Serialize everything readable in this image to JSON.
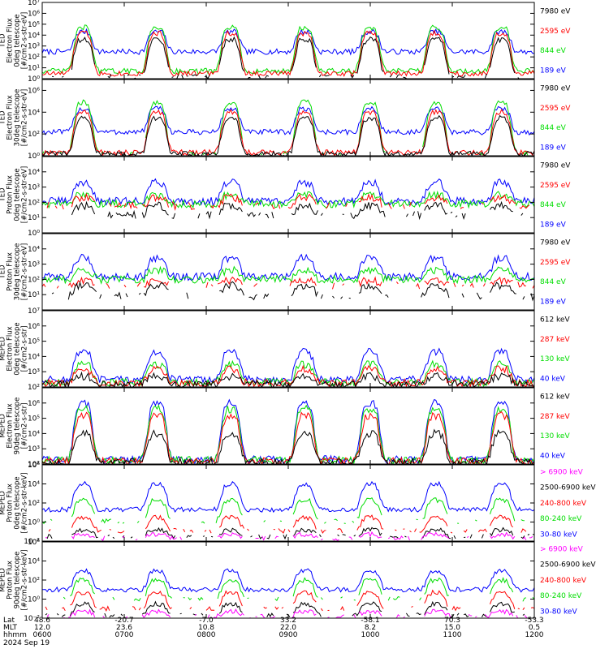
{
  "chart_data": [
    {
      "type": "line",
      "panel": "ted-electron-0deg",
      "ylabel_lines": [
        "TED",
        "Electron Flux",
        "0deg telescope",
        "[#/cm2-s-str-eV]"
      ],
      "ylim": [
        1,
        10000000
      ],
      "yscale": "log",
      "yticks": [
        {
          "label": "10⁷",
          "value": 10000000
        },
        {
          "label": "10⁶",
          "value": 1000000
        },
        {
          "label": "10⁵",
          "value": 100000
        },
        {
          "label": "10⁴",
          "value": 10000
        },
        {
          "label": "10³",
          "value": 1000
        },
        {
          "label": "10²",
          "value": 100
        },
        {
          "label": "10¹",
          "value": 10
        },
        {
          "label": "10⁰",
          "value": 1
        }
      ],
      "legend": [
        "7980 eV",
        "2595 eV",
        "844 eV",
        "189 eV"
      ],
      "series": [
        {
          "name": "189 eV",
          "color": "#0000ff",
          "base": 300,
          "zone": 20000,
          "gap": 0
        },
        {
          "name": "844 eV",
          "color": "#00dd00",
          "base": 5,
          "zone": 50000,
          "gap": 0
        },
        {
          "name": "2595 eV",
          "color": "#ff0000",
          "base": 3,
          "zone": 15000,
          "gap": 0
        },
        {
          "name": "7980 eV",
          "color": "#000000",
          "base": 1.5,
          "zone": 4000,
          "gap": 1
        }
      ]
    },
    {
      "type": "line",
      "panel": "ted-electron-30deg",
      "ylabel_lines": [
        "TED",
        "Electron Flux",
        "30deg telescope",
        "[#/cm2-s-str-eV]"
      ],
      "ylim": [
        1,
        10000000
      ],
      "yscale": "log",
      "yticks": [
        {
          "label": "10⁶",
          "value": 1000000
        },
        {
          "label": "10⁴",
          "value": 10000
        },
        {
          "label": "10²",
          "value": 100
        },
        {
          "label": "10⁰",
          "value": 1
        }
      ],
      "legend": [
        "7980 eV",
        "2595 eV",
        "844 eV",
        "189 eV"
      ],
      "series": [
        {
          "name": "189 eV",
          "color": "#0000ff",
          "base": 150,
          "zone": 20000,
          "gap": 0
        },
        {
          "name": "844 eV",
          "color": "#00dd00",
          "base": 1.5,
          "zone": 80000,
          "gap": 1
        },
        {
          "name": "2595 eV",
          "color": "#ff0000",
          "base": 2,
          "zone": 10000,
          "gap": 0
        },
        {
          "name": "7980 eV",
          "color": "#000000",
          "base": 1.5,
          "zone": 3000,
          "gap": 0
        }
      ]
    },
    {
      "type": "line",
      "panel": "ted-proton-0deg",
      "ylabel_lines": [
        "TED",
        "Proton Flux",
        "0deg telescope",
        "[#/cm2-s-str-eV]"
      ],
      "ylim": [
        1,
        100000
      ],
      "yscale": "log",
      "yticks": [
        {
          "label": "10⁴",
          "value": 10000
        },
        {
          "label": "10³",
          "value": 1000
        },
        {
          "label": "10²",
          "value": 100
        },
        {
          "label": "10¹",
          "value": 10
        },
        {
          "label": "10⁰",
          "value": 1
        }
      ],
      "legend": [
        "7980 eV",
        "2595 eV",
        "844 eV",
        "189 eV"
      ],
      "series": [
        {
          "name": "189 eV",
          "color": "#0000ff",
          "base": 120,
          "zone": 2000,
          "gap": 0
        },
        {
          "name": "844 eV",
          "color": "#00dd00",
          "base": 80,
          "zone": 300,
          "gap": 0
        },
        {
          "name": "2595 eV",
          "color": "#ff0000",
          "base": 60,
          "zone": 200,
          "gap": 1
        },
        {
          "name": "7980 eV",
          "color": "#000000",
          "base": 15,
          "zone": 60,
          "gap": 1
        }
      ]
    },
    {
      "type": "line",
      "panel": "ted-proton-30deg",
      "ylabel_lines": [
        "TED",
        "Proton Flux",
        "30deg telescope",
        "[#/cm2-s-str-eV]"
      ],
      "ylim": [
        1,
        100000
      ],
      "yscale": "log",
      "yticks": [
        {
          "label": "10⁴",
          "value": 10000
        },
        {
          "label": "10³",
          "value": 1000
        },
        {
          "label": "10²",
          "value": 100
        },
        {
          "label": "10¹",
          "value": 10
        }
      ],
      "legend": [
        "7980 eV",
        "2595 eV",
        "844 eV",
        "189 eV"
      ],
      "series": [
        {
          "name": "189 eV",
          "color": "#0000ff",
          "base": 150,
          "zone": 2500,
          "gap": 0
        },
        {
          "name": "844 eV",
          "color": "#00dd00",
          "base": 100,
          "zone": 400,
          "gap": 0
        },
        {
          "name": "2595 eV",
          "color": "#ff0000",
          "base": 40,
          "zone": 80,
          "gap": 1
        },
        {
          "name": "7980 eV",
          "color": "#000000",
          "base": 8,
          "zone": 40,
          "gap": 1
        }
      ]
    },
    {
      "type": "line",
      "panel": "meped-electron-0deg",
      "ylabel_lines": [
        "MEPED",
        "Electron Flux",
        "0deg telescope",
        "[#/cm2-s-str]"
      ],
      "ylim": [
        100,
        10000000
      ],
      "yscale": "log",
      "yticks": [
        {
          "label": "10⁷",
          "value": 10000000
        },
        {
          "label": "10⁶",
          "value": 1000000
        },
        {
          "label": "10⁵",
          "value": 100000
        },
        {
          "label": "10⁴",
          "value": 10000
        },
        {
          "label": "10³",
          "value": 1000
        },
        {
          "label": "10²",
          "value": 100
        }
      ],
      "legend": [
        "612 keV",
        "287 keV",
        "130 keV",
        "40 keV"
      ],
      "series": [
        {
          "name": "40 keV",
          "color": "#0000ff",
          "base": 300,
          "zone": 20000,
          "gap": 0
        },
        {
          "name": "130 keV",
          "color": "#00dd00",
          "base": 200,
          "zone": 3000,
          "gap": 0
        },
        {
          "name": "287 keV",
          "color": "#ff0000",
          "base": 180,
          "zone": 1500,
          "gap": 0
        },
        {
          "name": "612 keV",
          "color": "#000000",
          "base": 150,
          "zone": 500,
          "gap": 0
        }
      ]
    },
    {
      "type": "line",
      "panel": "meped-electron-90deg",
      "ylabel_lines": [
        "MEPED",
        "Electron Flux",
        "90deg telescope",
        "[#/cm2-s-str]"
      ],
      "ylim": [
        100,
        10000000
      ],
      "yscale": "log",
      "yticks": [
        {
          "label": "10⁶",
          "value": 1000000
        },
        {
          "label": "10⁵",
          "value": 100000
        },
        {
          "label": "10⁴",
          "value": 10000
        },
        {
          "label": "10³",
          "value": 1000
        },
        {
          "label": "10²",
          "value": 100
        }
      ],
      "legend": [
        "612 keV",
        "287 keV",
        "130 keV",
        "40 keV"
      ],
      "series": [
        {
          "name": "40 keV",
          "color": "#0000ff",
          "base": 200,
          "zone": 1000000,
          "gap": 0
        },
        {
          "name": "130 keV",
          "color": "#00dd00",
          "base": 180,
          "zone": 400000,
          "gap": 0
        },
        {
          "name": "287 keV",
          "color": "#ff0000",
          "base": 150,
          "zone": 150000,
          "gap": 0
        },
        {
          "name": "612 keV",
          "color": "#000000",
          "base": 130,
          "zone": 10000,
          "gap": 0
        }
      ]
    },
    {
      "type": "line",
      "panel": "meped-proton-0deg",
      "ylabel_lines": [
        "MEPED",
        "Proton Flux",
        "0deg telescope",
        "[#/cm2-s-str-keV]"
      ],
      "ylim": [
        0.01,
        1000000
      ],
      "yscale": "log",
      "yticks": [
        {
          "label": "10⁶",
          "value": 1000000
        },
        {
          "label": "10⁴",
          "value": 10000
        },
        {
          "label": "10²",
          "value": 100
        },
        {
          "label": "10⁰",
          "value": 1
        },
        {
          "label": "10⁻²",
          "value": 0.01
        }
      ],
      "legend": [
        "> 6900 keV",
        "2500-6900 keV",
        "240-800 keV",
        "80-240 keV",
        "30-80 keV"
      ],
      "series": [
        {
          "name": "30-80 keV",
          "color": "#0000ff",
          "base": 20,
          "zone": 10000,
          "gap": 0
        },
        {
          "name": "80-240 keV",
          "color": "#00dd00",
          "base": 1.2,
          "zone": 200,
          "gap": 1
        },
        {
          "name": "240-800 keV",
          "color": "#ff0000",
          "base": 0.12,
          "zone": 3,
          "gap": 1
        },
        {
          "name": "2500-6900 keV",
          "color": "#000000",
          "base": 0.03,
          "zone": 0.15,
          "gap": 1
        },
        {
          "name": "> 6900 keV",
          "color": "#ff00ff",
          "base": 0.02,
          "zone": 0.05,
          "gap": 1
        }
      ]
    },
    {
      "type": "line",
      "panel": "meped-proton-90deg",
      "ylabel_lines": [
        "MEPED",
        "Proton Flux",
        "90deg telescope",
        "[#/cm2-s-str-keV]"
      ],
      "ylim": [
        0.01,
        1000000
      ],
      "yscale": "log",
      "yticks": [
        {
          "label": "10⁶",
          "value": 1000000
        },
        {
          "label": "10⁴",
          "value": 10000
        },
        {
          "label": "10²",
          "value": 100
        },
        {
          "label": "10⁰",
          "value": 1
        },
        {
          "label": "10⁻²",
          "value": 0.01
        }
      ],
      "legend": [
        "> 6900 keV",
        "2500-6900 keV",
        "240-800 keV",
        "80-240 keV",
        "30-80 keV"
      ],
      "series": [
        {
          "name": "30-80 keV",
          "color": "#0000ff",
          "base": 10,
          "zone": 1000,
          "gap": 0
        },
        {
          "name": "80-240 keV",
          "color": "#00dd00",
          "base": 1,
          "zone": 100,
          "gap": 1
        },
        {
          "name": "240-800 keV",
          "color": "#ff0000",
          "base": 0.1,
          "zone": 5,
          "gap": 1
        },
        {
          "name": "2500-6900 keV",
          "color": "#000000",
          "base": 0.02,
          "zone": 0.3,
          "gap": 1
        },
        {
          "name": "> 6900 keV",
          "color": "#ff00ff",
          "base": 0.015,
          "zone": 0.05,
          "gap": 1
        }
      ]
    }
  ],
  "x_axis": {
    "hours": [
      6,
      12
    ],
    "zones_hours": [
      6.5,
      7.4,
      8.3,
      9.2,
      10.0,
      10.8,
      11.6
    ],
    "row_labels": [
      "Lat",
      "MLT",
      "hhmm"
    ],
    "date": "2024 Sep 19",
    "ticks": [
      {
        "hour": 6,
        "lat": "48.6",
        "mlt": "12.0",
        "hhmm": "0600"
      },
      {
        "hour": 7,
        "lat": "-20.7",
        "mlt": "23.6",
        "hhmm": "0700"
      },
      {
        "hour": 8,
        "lat": "-7.0",
        "mlt": "10.8",
        "hhmm": "0800"
      },
      {
        "hour": 9,
        "lat": "33.2",
        "mlt": "22.0",
        "hhmm": "0900"
      },
      {
        "hour": 10,
        "lat": "-58.1",
        "mlt": "8.2",
        "hhmm": "1000"
      },
      {
        "hour": 11,
        "lat": "70.3",
        "mlt": "15.0",
        "hhmm": "1100"
      },
      {
        "hour": 12,
        "lat": "-53.3",
        "mlt": "0.5",
        "hhmm": "1200"
      }
    ]
  }
}
